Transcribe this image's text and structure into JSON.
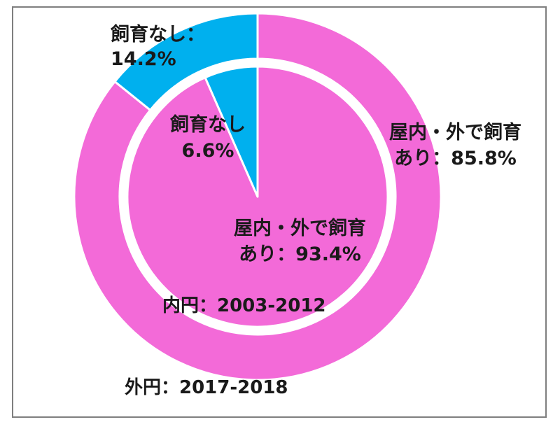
{
  "colors": {
    "pink": "#f36ad8",
    "blue": "#00b0ee",
    "separator": "#ffffff",
    "frame": "#7f7f7f"
  },
  "chart_data": [
    {
      "type": "donut",
      "ring": "outer",
      "label": "外円：2017-2018",
      "slices": [
        {
          "name": "屋内・外で飼育あり",
          "value": 85.8,
          "label_line1": "屋内・外で飼育",
          "label_line2": "あり：85.8%",
          "color": "#f36ad8"
        },
        {
          "name": "飼育なし",
          "value": 14.2,
          "label_line1": "飼育なし：",
          "label_line2": "14.2%",
          "color": "#00b0ee"
        }
      ]
    },
    {
      "type": "pie",
      "ring": "inner",
      "label": "内円：2003-2012",
      "slices": [
        {
          "name": "屋内・外で飼育あり",
          "value": 93.4,
          "label_line1": "屋内・外で飼育",
          "label_line2": "あり：93.4%",
          "color": "#f36ad8"
        },
        {
          "name": "飼育なし",
          "value": 6.6,
          "label_line1": "飼育なし",
          "label_line2": "6.6%",
          "color": "#00b0ee"
        }
      ]
    }
  ]
}
